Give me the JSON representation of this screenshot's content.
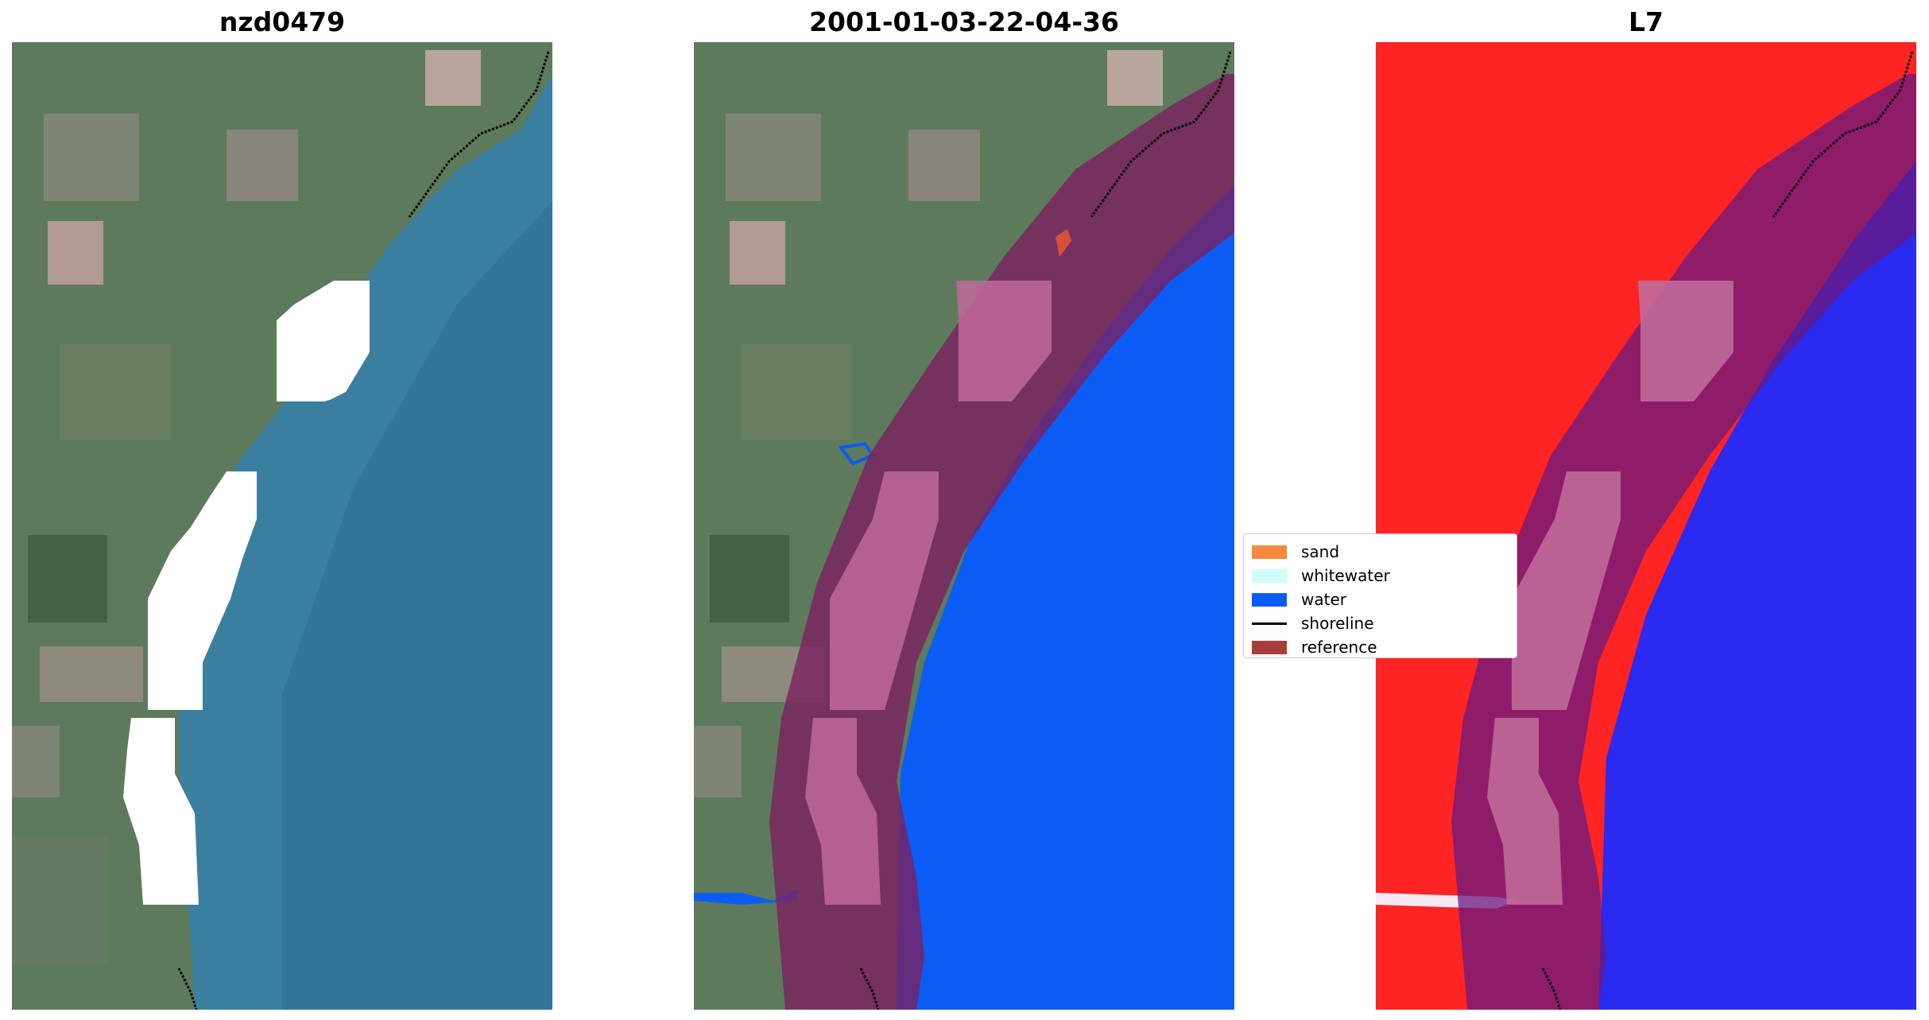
{
  "panels": [
    {
      "title": "nzd0479"
    },
    {
      "title": "2001-01-03-22-04-36"
    },
    {
      "title": "L7"
    }
  ],
  "legend": {
    "items": [
      {
        "label": "sand",
        "color": "#f58a3c"
      },
      {
        "label": "whitewater",
        "color": "#d0fbfb"
      },
      {
        "label": "water",
        "color": "#0b5cf5"
      },
      {
        "label": "shoreline",
        "color": "#000000"
      },
      {
        "label": "reference",
        "color": "#a83c3c"
      }
    ]
  }
}
